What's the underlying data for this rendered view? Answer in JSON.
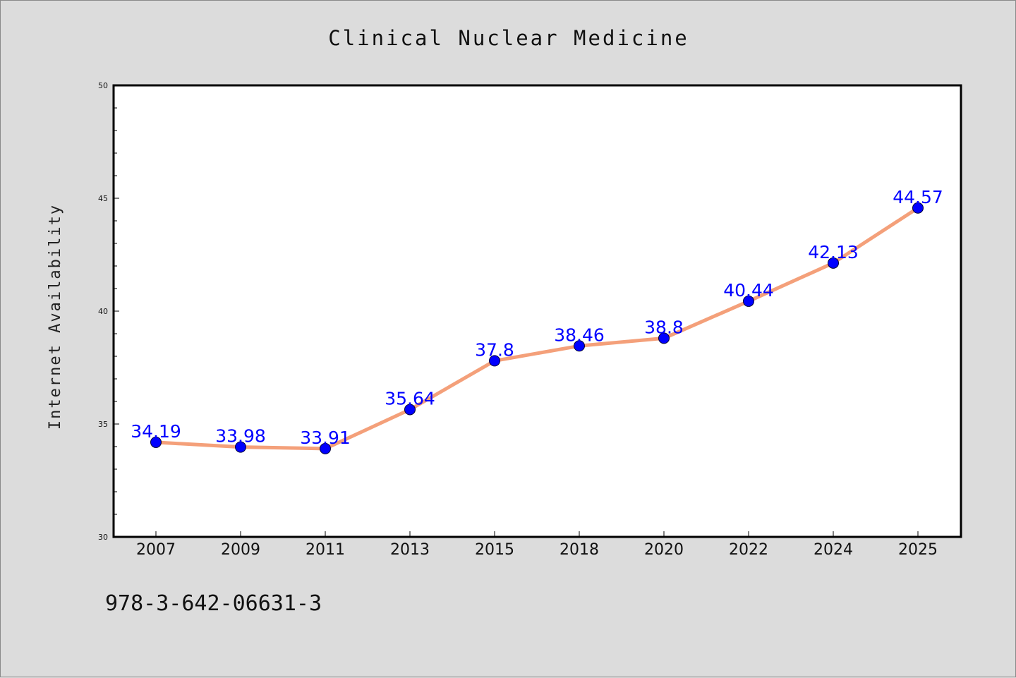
{
  "colors": {
    "background": "#dcdcdc",
    "plot_background": "#ffffff",
    "line": "#f4a07a",
    "marker": "#0000ff",
    "data_label": "#0000ff"
  },
  "footer": {
    "isbn": "978-3-642-06631-3"
  },
  "chart_data": {
    "type": "line",
    "title": "Clinical Nuclear Medicine",
    "xlabel": "",
    "ylabel": "Internet Availability",
    "categories": [
      "2007",
      "2009",
      "2011",
      "2013",
      "2015",
      "2018",
      "2020",
      "2022",
      "2024",
      "2025"
    ],
    "series": [
      {
        "values": [
          34.19,
          33.98,
          33.91,
          35.64,
          37.8,
          38.46,
          38.8,
          40.44,
          42.13,
          44.57
        ],
        "labels": [
          "34.19",
          "33.98",
          "33.91",
          "35.64",
          "37.8",
          "38.46",
          "38.8",
          "40.44",
          "42.13",
          "44.57"
        ]
      }
    ],
    "ylim": [
      30,
      50
    ],
    "yticks": [
      "30",
      "35",
      "40",
      "45",
      "50"
    ],
    "grid": false,
    "legend": "none",
    "marker": "circle"
  }
}
